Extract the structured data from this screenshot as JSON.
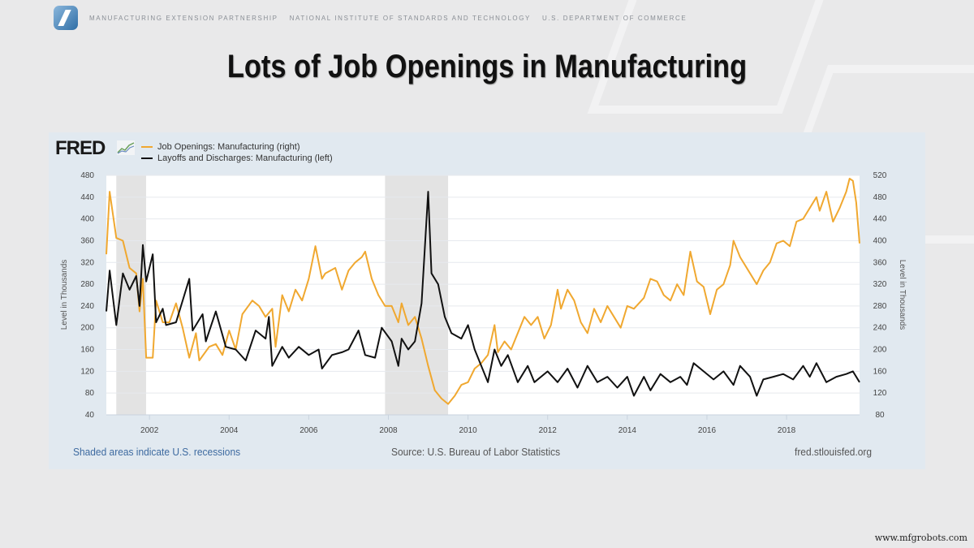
{
  "header": {
    "orgs": [
      "MANUFACTURING EXTENSION PARTNERSHIP",
      "NATIONAL INSTITUTE OF STANDARDS AND TECHNOLOGY",
      "U.S. DEPARTMENT OF COMMERCE"
    ]
  },
  "slide_title": "Lots of Job Openings in Manufacturing",
  "fred_logo": "FRED",
  "footer": {
    "note": "Shaded areas indicate U.S. recessions",
    "source": "Source: U.S. Bureau of Labor Statistics",
    "site": "fred.stlouisfed.org"
  },
  "watermark": "www.mfgrobots.com",
  "chart_data": {
    "type": "line",
    "xlim": [
      "2000-12",
      "2019-11"
    ],
    "xticks": [
      "2002",
      "2004",
      "2006",
      "2008",
      "2010",
      "2012",
      "2014",
      "2016",
      "2018"
    ],
    "ylabel_left": "Level in Thousands",
    "ylabel_right": "Level in Thousands",
    "ylim_left": [
      40,
      480
    ],
    "yticks_left": [
      40,
      80,
      120,
      160,
      200,
      240,
      280,
      320,
      360,
      400,
      440,
      480
    ],
    "ylim_right": [
      80,
      520
    ],
    "yticks_right": [
      80,
      120,
      160,
      200,
      240,
      280,
      320,
      360,
      400,
      440,
      480,
      520
    ],
    "grid": true,
    "legend_placement": "top-left",
    "recessions": [
      [
        "2001-03",
        "2001-11"
      ],
      [
        "2007-12",
        "2009-06"
      ]
    ],
    "series": [
      {
        "name": "Job Openings: Manufacturing (right)",
        "axis": "right",
        "color": "#f0a830",
        "points": [
          [
            "2000-12",
            375
          ],
          [
            "2001-01",
            490
          ],
          [
            "2001-03",
            405
          ],
          [
            "2001-05",
            400
          ],
          [
            "2001-07",
            350
          ],
          [
            "2001-09",
            340
          ],
          [
            "2001-10",
            270
          ],
          [
            "2001-11",
            330
          ],
          [
            "2001-12",
            185
          ],
          [
            "2002-02",
            185
          ],
          [
            "2002-03",
            290
          ],
          [
            "2002-05",
            250
          ],
          [
            "2002-07",
            250
          ],
          [
            "2002-09",
            285
          ],
          [
            "2002-11",
            240
          ],
          [
            "2003-01",
            185
          ],
          [
            "2003-03",
            230
          ],
          [
            "2003-04",
            180
          ],
          [
            "2003-07",
            205
          ],
          [
            "2003-09",
            210
          ],
          [
            "2003-11",
            190
          ],
          [
            "2004-01",
            235
          ],
          [
            "2004-03",
            200
          ],
          [
            "2004-05",
            265
          ],
          [
            "2004-08",
            290
          ],
          [
            "2004-10",
            280
          ],
          [
            "2004-12",
            260
          ],
          [
            "2005-02",
            275
          ],
          [
            "2005-03",
            205
          ],
          [
            "2005-05",
            300
          ],
          [
            "2005-07",
            270
          ],
          [
            "2005-09",
            310
          ],
          [
            "2005-11",
            290
          ],
          [
            "2006-01",
            330
          ],
          [
            "2006-03",
            390
          ],
          [
            "2006-05",
            330
          ],
          [
            "2006-06",
            340
          ],
          [
            "2006-09",
            350
          ],
          [
            "2006-11",
            310
          ],
          [
            "2007-01",
            345
          ],
          [
            "2007-03",
            360
          ],
          [
            "2007-05",
            370
          ],
          [
            "2007-06",
            380
          ],
          [
            "2007-08",
            330
          ],
          [
            "2007-10",
            300
          ],
          [
            "2007-12",
            280
          ],
          [
            "2008-02",
            280
          ],
          [
            "2008-04",
            250
          ],
          [
            "2008-05",
            285
          ],
          [
            "2008-07",
            245
          ],
          [
            "2008-09",
            260
          ],
          [
            "2008-11",
            220
          ],
          [
            "2009-01",
            170
          ],
          [
            "2009-03",
            125
          ],
          [
            "2009-05",
            110
          ],
          [
            "2009-07",
            100
          ],
          [
            "2009-09",
            115
          ],
          [
            "2009-11",
            135
          ],
          [
            "2010-01",
            140
          ],
          [
            "2010-03",
            165
          ],
          [
            "2010-05",
            175
          ],
          [
            "2010-07",
            190
          ],
          [
            "2010-09",
            245
          ],
          [
            "2010-10",
            195
          ],
          [
            "2010-12",
            215
          ],
          [
            "2011-02",
            200
          ],
          [
            "2011-04",
            230
          ],
          [
            "2011-06",
            260
          ],
          [
            "2011-08",
            245
          ],
          [
            "2011-10",
            260
          ],
          [
            "2011-12",
            220
          ],
          [
            "2012-02",
            245
          ],
          [
            "2012-04",
            310
          ],
          [
            "2012-05",
            275
          ],
          [
            "2012-07",
            310
          ],
          [
            "2012-09",
            290
          ],
          [
            "2012-11",
            250
          ],
          [
            "2013-01",
            230
          ],
          [
            "2013-03",
            275
          ],
          [
            "2013-05",
            250
          ],
          [
            "2013-07",
            280
          ],
          [
            "2013-09",
            260
          ],
          [
            "2013-11",
            240
          ],
          [
            "2014-01",
            280
          ],
          [
            "2014-03",
            275
          ],
          [
            "2014-06",
            295
          ],
          [
            "2014-08",
            330
          ],
          [
            "2014-10",
            325
          ],
          [
            "2014-12",
            300
          ],
          [
            "2015-02",
            290
          ],
          [
            "2015-04",
            320
          ],
          [
            "2015-06",
            300
          ],
          [
            "2015-08",
            380
          ],
          [
            "2015-10",
            325
          ],
          [
            "2015-12",
            315
          ],
          [
            "2016-02",
            265
          ],
          [
            "2016-04",
            310
          ],
          [
            "2016-06",
            320
          ],
          [
            "2016-08",
            355
          ],
          [
            "2016-09",
            400
          ],
          [
            "2016-11",
            370
          ],
          [
            "2017-02",
            340
          ],
          [
            "2017-04",
            320
          ],
          [
            "2017-06",
            345
          ],
          [
            "2017-08",
            360
          ],
          [
            "2017-10",
            395
          ],
          [
            "2017-12",
            400
          ],
          [
            "2018-02",
            390
          ],
          [
            "2018-04",
            435
          ],
          [
            "2018-06",
            440
          ],
          [
            "2018-08",
            460
          ],
          [
            "2018-10",
            480
          ],
          [
            "2018-11",
            455
          ],
          [
            "2019-01",
            490
          ],
          [
            "2019-03",
            435
          ],
          [
            "2019-05",
            460
          ],
          [
            "2019-07",
            490
          ],
          [
            "2019-08",
            514
          ],
          [
            "2019-09",
            510
          ],
          [
            "2019-10",
            470
          ],
          [
            "2019-11",
            395
          ]
        ]
      },
      {
        "name": "Layoffs and Discharges: Manufacturing (left)",
        "axis": "left",
        "color": "#111111",
        "points": [
          [
            "2000-12",
            230
          ],
          [
            "2001-01",
            305
          ],
          [
            "2001-03",
            205
          ],
          [
            "2001-05",
            300
          ],
          [
            "2001-07",
            270
          ],
          [
            "2001-09",
            295
          ],
          [
            "2001-10",
            240
          ],
          [
            "2001-11",
            352
          ],
          [
            "2001-12",
            285
          ],
          [
            "2002-02",
            335
          ],
          [
            "2002-03",
            210
          ],
          [
            "2002-05",
            235
          ],
          [
            "2002-06",
            205
          ],
          [
            "2002-09",
            210
          ],
          [
            "2003-01",
            290
          ],
          [
            "2003-02",
            195
          ],
          [
            "2003-05",
            225
          ],
          [
            "2003-06",
            175
          ],
          [
            "2003-09",
            230
          ],
          [
            "2003-12",
            165
          ],
          [
            "2004-03",
            160
          ],
          [
            "2004-06",
            140
          ],
          [
            "2004-09",
            195
          ],
          [
            "2004-12",
            180
          ],
          [
            "2005-01",
            220
          ],
          [
            "2005-02",
            130
          ],
          [
            "2005-05",
            165
          ],
          [
            "2005-07",
            145
          ],
          [
            "2005-10",
            165
          ],
          [
            "2006-01",
            150
          ],
          [
            "2006-04",
            160
          ],
          [
            "2006-05",
            125
          ],
          [
            "2006-08",
            150
          ],
          [
            "2006-11",
            155
          ],
          [
            "2007-01",
            160
          ],
          [
            "2007-04",
            195
          ],
          [
            "2007-06",
            150
          ],
          [
            "2007-09",
            145
          ],
          [
            "2007-11",
            200
          ],
          [
            "2008-02",
            175
          ],
          [
            "2008-04",
            130
          ],
          [
            "2008-05",
            180
          ],
          [
            "2008-07",
            160
          ],
          [
            "2008-09",
            175
          ],
          [
            "2008-11",
            245
          ],
          [
            "2009-01",
            450
          ],
          [
            "2009-02",
            300
          ],
          [
            "2009-04",
            280
          ],
          [
            "2009-06",
            220
          ],
          [
            "2009-08",
            190
          ],
          [
            "2009-11",
            180
          ],
          [
            "2010-01",
            205
          ],
          [
            "2010-03",
            160
          ],
          [
            "2010-05",
            130
          ],
          [
            "2010-07",
            100
          ],
          [
            "2010-09",
            160
          ],
          [
            "2010-11",
            130
          ],
          [
            "2011-01",
            150
          ],
          [
            "2011-04",
            100
          ],
          [
            "2011-07",
            130
          ],
          [
            "2011-09",
            100
          ],
          [
            "2012-01",
            120
          ],
          [
            "2012-04",
            100
          ],
          [
            "2012-07",
            125
          ],
          [
            "2012-10",
            90
          ],
          [
            "2013-01",
            130
          ],
          [
            "2013-04",
            100
          ],
          [
            "2013-07",
            110
          ],
          [
            "2013-10",
            90
          ],
          [
            "2014-01",
            110
          ],
          [
            "2014-03",
            75
          ],
          [
            "2014-06",
            110
          ],
          [
            "2014-08",
            85
          ],
          [
            "2014-11",
            115
          ],
          [
            "2015-02",
            100
          ],
          [
            "2015-05",
            110
          ],
          [
            "2015-07",
            95
          ],
          [
            "2015-09",
            135
          ],
          [
            "2015-12",
            120
          ],
          [
            "2016-03",
            105
          ],
          [
            "2016-06",
            120
          ],
          [
            "2016-09",
            95
          ],
          [
            "2016-11",
            130
          ],
          [
            "2017-02",
            110
          ],
          [
            "2017-04",
            75
          ],
          [
            "2017-06",
            105
          ],
          [
            "2017-09",
            110
          ],
          [
            "2017-12",
            115
          ],
          [
            "2018-03",
            105
          ],
          [
            "2018-06",
            130
          ],
          [
            "2018-08",
            110
          ],
          [
            "2018-10",
            135
          ],
          [
            "2019-01",
            100
          ],
          [
            "2019-04",
            110
          ],
          [
            "2019-07",
            115
          ],
          [
            "2019-09",
            120
          ],
          [
            "2019-11",
            100
          ]
        ]
      }
    ]
  }
}
